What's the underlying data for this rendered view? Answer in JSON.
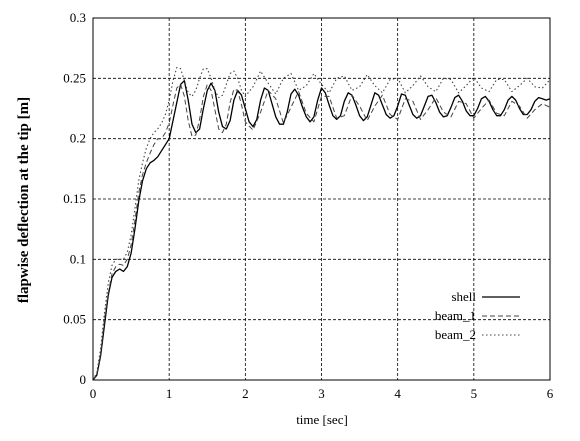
{
  "chart_data": {
    "type": "line",
    "title": "",
    "xlabel": "time [sec]",
    "ylabel": "flapwise deflection at the tip [m]",
    "xlim": [
      0,
      6
    ],
    "ylim": [
      0,
      0.3
    ],
    "xticks": [
      "0",
      "1",
      "2",
      "3",
      "4",
      "5",
      "6"
    ],
    "yticks": [
      "0",
      "0.05",
      "0.1",
      "0.15",
      "0.2",
      "0.25",
      "0.3"
    ],
    "grid": true,
    "legend": "bottom-right",
    "series": [
      {
        "name": "shell",
        "style": "solid",
        "x": [
          0,
          0.05,
          0.1,
          0.15,
          0.2,
          0.25,
          0.3,
          0.35,
          0.4,
          0.45,
          0.5,
          0.55,
          0.6,
          0.65,
          0.7,
          0.75,
          0.8,
          0.85,
          0.9,
          0.95,
          1.0,
          1.05,
          1.1,
          1.15,
          1.2,
          1.25,
          1.3,
          1.35,
          1.4,
          1.45,
          1.5,
          1.55,
          1.6,
          1.65,
          1.7,
          1.75,
          1.8,
          1.85,
          1.9,
          1.95,
          2.0,
          2.05,
          2.1,
          2.15,
          2.2,
          2.25,
          2.3,
          2.35,
          2.4,
          2.45,
          2.5,
          2.55,
          2.6,
          2.65,
          2.7,
          2.75,
          2.8,
          2.85,
          2.9,
          2.95,
          3.0,
          3.05,
          3.1,
          3.15,
          3.2,
          3.25,
          3.3,
          3.35,
          3.4,
          3.45,
          3.5,
          3.55,
          3.6,
          3.65,
          3.7,
          3.75,
          3.8,
          3.85,
          3.9,
          3.95,
          4.0,
          4.05,
          4.1,
          4.15,
          4.2,
          4.25,
          4.3,
          4.35,
          4.4,
          4.45,
          4.5,
          4.55,
          4.6,
          4.65,
          4.7,
          4.75,
          4.8,
          4.85,
          4.9,
          4.95,
          5.0,
          5.05,
          5.1,
          5.15,
          5.2,
          5.25,
          5.3,
          5.35,
          5.4,
          5.45,
          5.5,
          5.55,
          5.6,
          5.65,
          5.7,
          5.75,
          5.8,
          5.85,
          5.9,
          5.95,
          6.0
        ],
        "y": [
          0,
          0.004,
          0.02,
          0.045,
          0.07,
          0.085,
          0.09,
          0.092,
          0.09,
          0.094,
          0.105,
          0.125,
          0.148,
          0.165,
          0.175,
          0.18,
          0.182,
          0.185,
          0.19,
          0.195,
          0.2,
          0.215,
          0.23,
          0.245,
          0.248,
          0.232,
          0.212,
          0.205,
          0.208,
          0.225,
          0.24,
          0.246,
          0.24,
          0.222,
          0.21,
          0.208,
          0.215,
          0.232,
          0.24,
          0.236,
          0.225,
          0.214,
          0.21,
          0.216,
          0.232,
          0.242,
          0.24,
          0.229,
          0.218,
          0.212,
          0.212,
          0.222,
          0.237,
          0.241,
          0.236,
          0.226,
          0.218,
          0.214,
          0.218,
          0.232,
          0.242,
          0.238,
          0.228,
          0.219,
          0.216,
          0.219,
          0.231,
          0.238,
          0.236,
          0.228,
          0.219,
          0.215,
          0.218,
          0.228,
          0.238,
          0.236,
          0.228,
          0.22,
          0.217,
          0.219,
          0.227,
          0.237,
          0.236,
          0.228,
          0.22,
          0.217,
          0.219,
          0.227,
          0.235,
          0.236,
          0.23,
          0.222,
          0.218,
          0.219,
          0.226,
          0.234,
          0.236,
          0.231,
          0.223,
          0.219,
          0.219,
          0.225,
          0.233,
          0.235,
          0.231,
          0.224,
          0.219,
          0.219,
          0.224,
          0.232,
          0.235,
          0.232,
          0.225,
          0.22,
          0.22,
          0.224,
          0.231,
          0.234,
          0.233,
          0.232,
          0.233
        ]
      },
      {
        "name": "beam_1",
        "style": "dashed",
        "x": [
          0,
          0.05,
          0.1,
          0.15,
          0.2,
          0.25,
          0.3,
          0.35,
          0.4,
          0.45,
          0.5,
          0.55,
          0.6,
          0.65,
          0.7,
          0.75,
          0.8,
          0.85,
          0.9,
          0.95,
          1.0,
          1.05,
          1.1,
          1.15,
          1.2,
          1.25,
          1.3,
          1.35,
          1.4,
          1.45,
          1.5,
          1.55,
          1.6,
          1.65,
          1.7,
          1.75,
          1.8,
          1.85,
          1.9,
          1.95,
          2.0,
          2.1,
          2.2,
          2.3,
          2.4,
          2.5,
          2.6,
          2.7,
          2.8,
          2.9,
          3.0,
          3.1,
          3.2,
          3.3,
          3.4,
          3.5,
          3.6,
          3.7,
          3.8,
          3.9,
          4.0,
          4.1,
          4.2,
          4.3,
          4.4,
          4.5,
          4.6,
          4.7,
          4.8,
          4.9,
          5.0,
          5.1,
          5.2,
          5.3,
          5.4,
          5.5,
          5.6,
          5.7,
          5.8,
          5.9,
          6.0
        ],
        "y": [
          0,
          0.005,
          0.022,
          0.05,
          0.072,
          0.088,
          0.094,
          0.096,
          0.095,
          0.1,
          0.112,
          0.132,
          0.155,
          0.17,
          0.18,
          0.188,
          0.195,
          0.2,
          0.2,
          0.205,
          0.213,
          0.228,
          0.242,
          0.245,
          0.235,
          0.215,
          0.202,
          0.203,
          0.216,
          0.235,
          0.245,
          0.24,
          0.224,
          0.208,
          0.205,
          0.212,
          0.23,
          0.241,
          0.24,
          0.228,
          0.214,
          0.207,
          0.222,
          0.24,
          0.233,
          0.213,
          0.226,
          0.239,
          0.221,
          0.214,
          0.235,
          0.235,
          0.217,
          0.219,
          0.236,
          0.227,
          0.215,
          0.227,
          0.236,
          0.22,
          0.216,
          0.233,
          0.231,
          0.216,
          0.224,
          0.234,
          0.222,
          0.218,
          0.231,
          0.229,
          0.217,
          0.225,
          0.232,
          0.221,
          0.219,
          0.231,
          0.227,
          0.217,
          0.224,
          0.229,
          0.226
        ]
      },
      {
        "name": "beam_2",
        "style": "dotted",
        "x": [
          0,
          0.05,
          0.1,
          0.15,
          0.2,
          0.25,
          0.3,
          0.35,
          0.4,
          0.45,
          0.5,
          0.55,
          0.6,
          0.65,
          0.7,
          0.75,
          0.8,
          0.85,
          0.9,
          0.95,
          1.0,
          1.05,
          1.1,
          1.15,
          1.2,
          1.25,
          1.3,
          1.35,
          1.4,
          1.45,
          1.5,
          1.55,
          1.6,
          1.65,
          1.7,
          1.75,
          1.8,
          1.85,
          1.9,
          1.95,
          2.0,
          2.1,
          2.2,
          2.3,
          2.4,
          2.5,
          2.6,
          2.7,
          2.8,
          2.9,
          3.0,
          3.1,
          3.2,
          3.3,
          3.4,
          3.5,
          3.6,
          3.7,
          3.8,
          3.9,
          4.0,
          4.1,
          4.2,
          4.3,
          4.4,
          4.5,
          4.6,
          4.7,
          4.8,
          4.9,
          5.0,
          5.1,
          5.2,
          5.3,
          5.4,
          5.5,
          5.6,
          5.7,
          5.8,
          5.9,
          6.0
        ],
        "y": [
          0,
          0.006,
          0.026,
          0.055,
          0.08,
          0.095,
          0.1,
          0.1,
          0.1,
          0.106,
          0.12,
          0.142,
          0.165,
          0.18,
          0.192,
          0.2,
          0.205,
          0.208,
          0.213,
          0.22,
          0.232,
          0.248,
          0.259,
          0.258,
          0.248,
          0.238,
          0.235,
          0.24,
          0.25,
          0.258,
          0.258,
          0.25,
          0.24,
          0.234,
          0.236,
          0.245,
          0.254,
          0.256,
          0.25,
          0.24,
          0.235,
          0.243,
          0.256,
          0.246,
          0.237,
          0.25,
          0.254,
          0.24,
          0.244,
          0.254,
          0.245,
          0.238,
          0.25,
          0.252,
          0.24,
          0.243,
          0.253,
          0.244,
          0.238,
          0.249,
          0.25,
          0.238,
          0.244,
          0.252,
          0.243,
          0.239,
          0.25,
          0.249,
          0.238,
          0.244,
          0.251,
          0.242,
          0.239,
          0.249,
          0.249,
          0.239,
          0.244,
          0.25,
          0.243,
          0.242,
          0.249
        ]
      }
    ]
  }
}
